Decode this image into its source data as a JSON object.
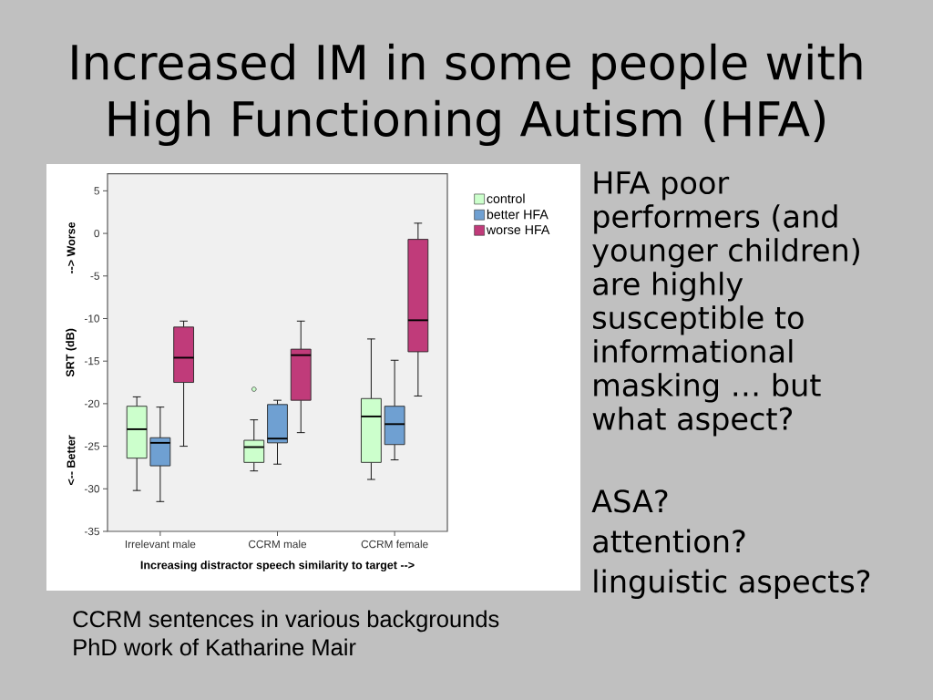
{
  "chart_data": {
    "type": "box",
    "title": "Increased IM in some people with High Functioning Autism (HFA)",
    "xlabel": "Increasing distractor speech similarity to target -->",
    "ylabel": "SRT (dB)",
    "categories": [
      "Irrelevant male",
      "CCRM male",
      "CCRM female"
    ],
    "series": [
      {
        "name": "control",
        "color": "#ccffcc",
        "boxes": [
          {
            "low": -30.2,
            "q1": -26.4,
            "median": -23.0,
            "q3": -20.3,
            "high": -19.2
          },
          {
            "low": -27.9,
            "q1": -26.9,
            "median": -25.1,
            "q3": -24.3,
            "high": -21.9,
            "outliers": [
              -18.3
            ]
          },
          {
            "low": -28.9,
            "q1": -26.9,
            "median": -21.5,
            "q3": -19.4,
            "high": -12.4
          }
        ]
      },
      {
        "name": "better HFA",
        "color": "#6fa0d2",
        "boxes": [
          {
            "low": -31.5,
            "q1": -27.3,
            "median": -24.6,
            "q3": -24.0,
            "high": -20.4
          },
          {
            "low": -27.1,
            "q1": -24.6,
            "median": -24.1,
            "q3": -20.1,
            "high": -19.6
          },
          {
            "low": -26.6,
            "q1": -24.8,
            "median": -22.4,
            "q3": -20.3,
            "high": -14.9
          }
        ]
      },
      {
        "name": "worse HFA",
        "color": "#c03b7a",
        "boxes": [
          {
            "low": -25.0,
            "q1": -17.5,
            "median": -14.6,
            "q3": -11.0,
            "high": -10.3
          },
          {
            "low": -23.4,
            "q1": -19.6,
            "median": -14.3,
            "q3": -13.6,
            "high": -10.3
          },
          {
            "low": -19.1,
            "q1": -13.9,
            "median": -10.2,
            "q3": -0.7,
            "high": 1.2
          }
        ]
      }
    ],
    "ylim": [
      -35,
      7
    ],
    "yticks": [
      -35,
      -30,
      -25,
      -20,
      -15,
      -10,
      -5,
      0,
      5
    ],
    "legend": "top right",
    "annotations": [
      "<-- Better",
      "--> Worse",
      "HFA poor performers (and younger children) are highly susceptible to informational masking … but what aspect?",
      "ASA?",
      "attention?",
      "linguistic aspects?",
      "CCRM sentences in various backgrounds",
      "PhD work of Katharine Mair"
    ]
  }
}
